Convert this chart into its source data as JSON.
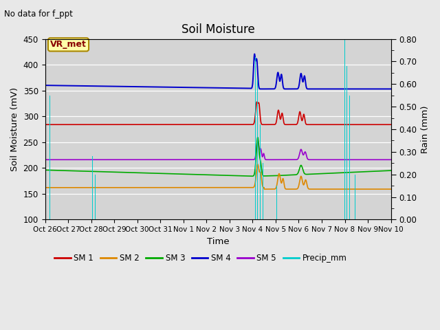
{
  "title": "Soil Moisture",
  "subtitle": "No data for f_ppt",
  "xlabel": "Time",
  "ylabel_left": "Soil Moisture (mV)",
  "ylabel_right": "Rain (mm)",
  "ylim_left": [
    100,
    450
  ],
  "ylim_right": [
    0.0,
    0.8
  ],
  "fig_bg": "#e8e8e8",
  "plot_bg": "#d4d4d4",
  "vr_met_label": "VR_met",
  "colors": {
    "sm1": "#cc0000",
    "sm2": "#dd8800",
    "sm3": "#00aa00",
    "sm4": "#0000cc",
    "sm5": "#9900cc",
    "precip": "#00cccc"
  },
  "xtick_labels": [
    "Oct 26",
    "Oct 27",
    "Oct 28",
    "Oct 29",
    "Oct 30",
    "Oct 31",
    "Nov 1",
    "Nov 2",
    "Nov 3",
    "Nov 4",
    "Nov 5",
    "Nov 6",
    "Nov 7",
    "Nov 8",
    "Nov 9",
    "Nov 10"
  ],
  "yticks_left": [
    100,
    150,
    200,
    250,
    300,
    350,
    400,
    450
  ],
  "yticks_right": [
    0.0,
    0.1,
    0.2,
    0.3,
    0.4,
    0.5,
    0.6,
    0.7,
    0.8
  ],
  "sm1_base": 284,
  "sm2_base": 162,
  "sm3_base": 196,
  "sm4_base": 360,
  "sm5_base": 216,
  "sm1_post": 284,
  "sm2_post": 159,
  "sm3_post": 195,
  "sm4_post": 353,
  "sm5_post": 215
}
